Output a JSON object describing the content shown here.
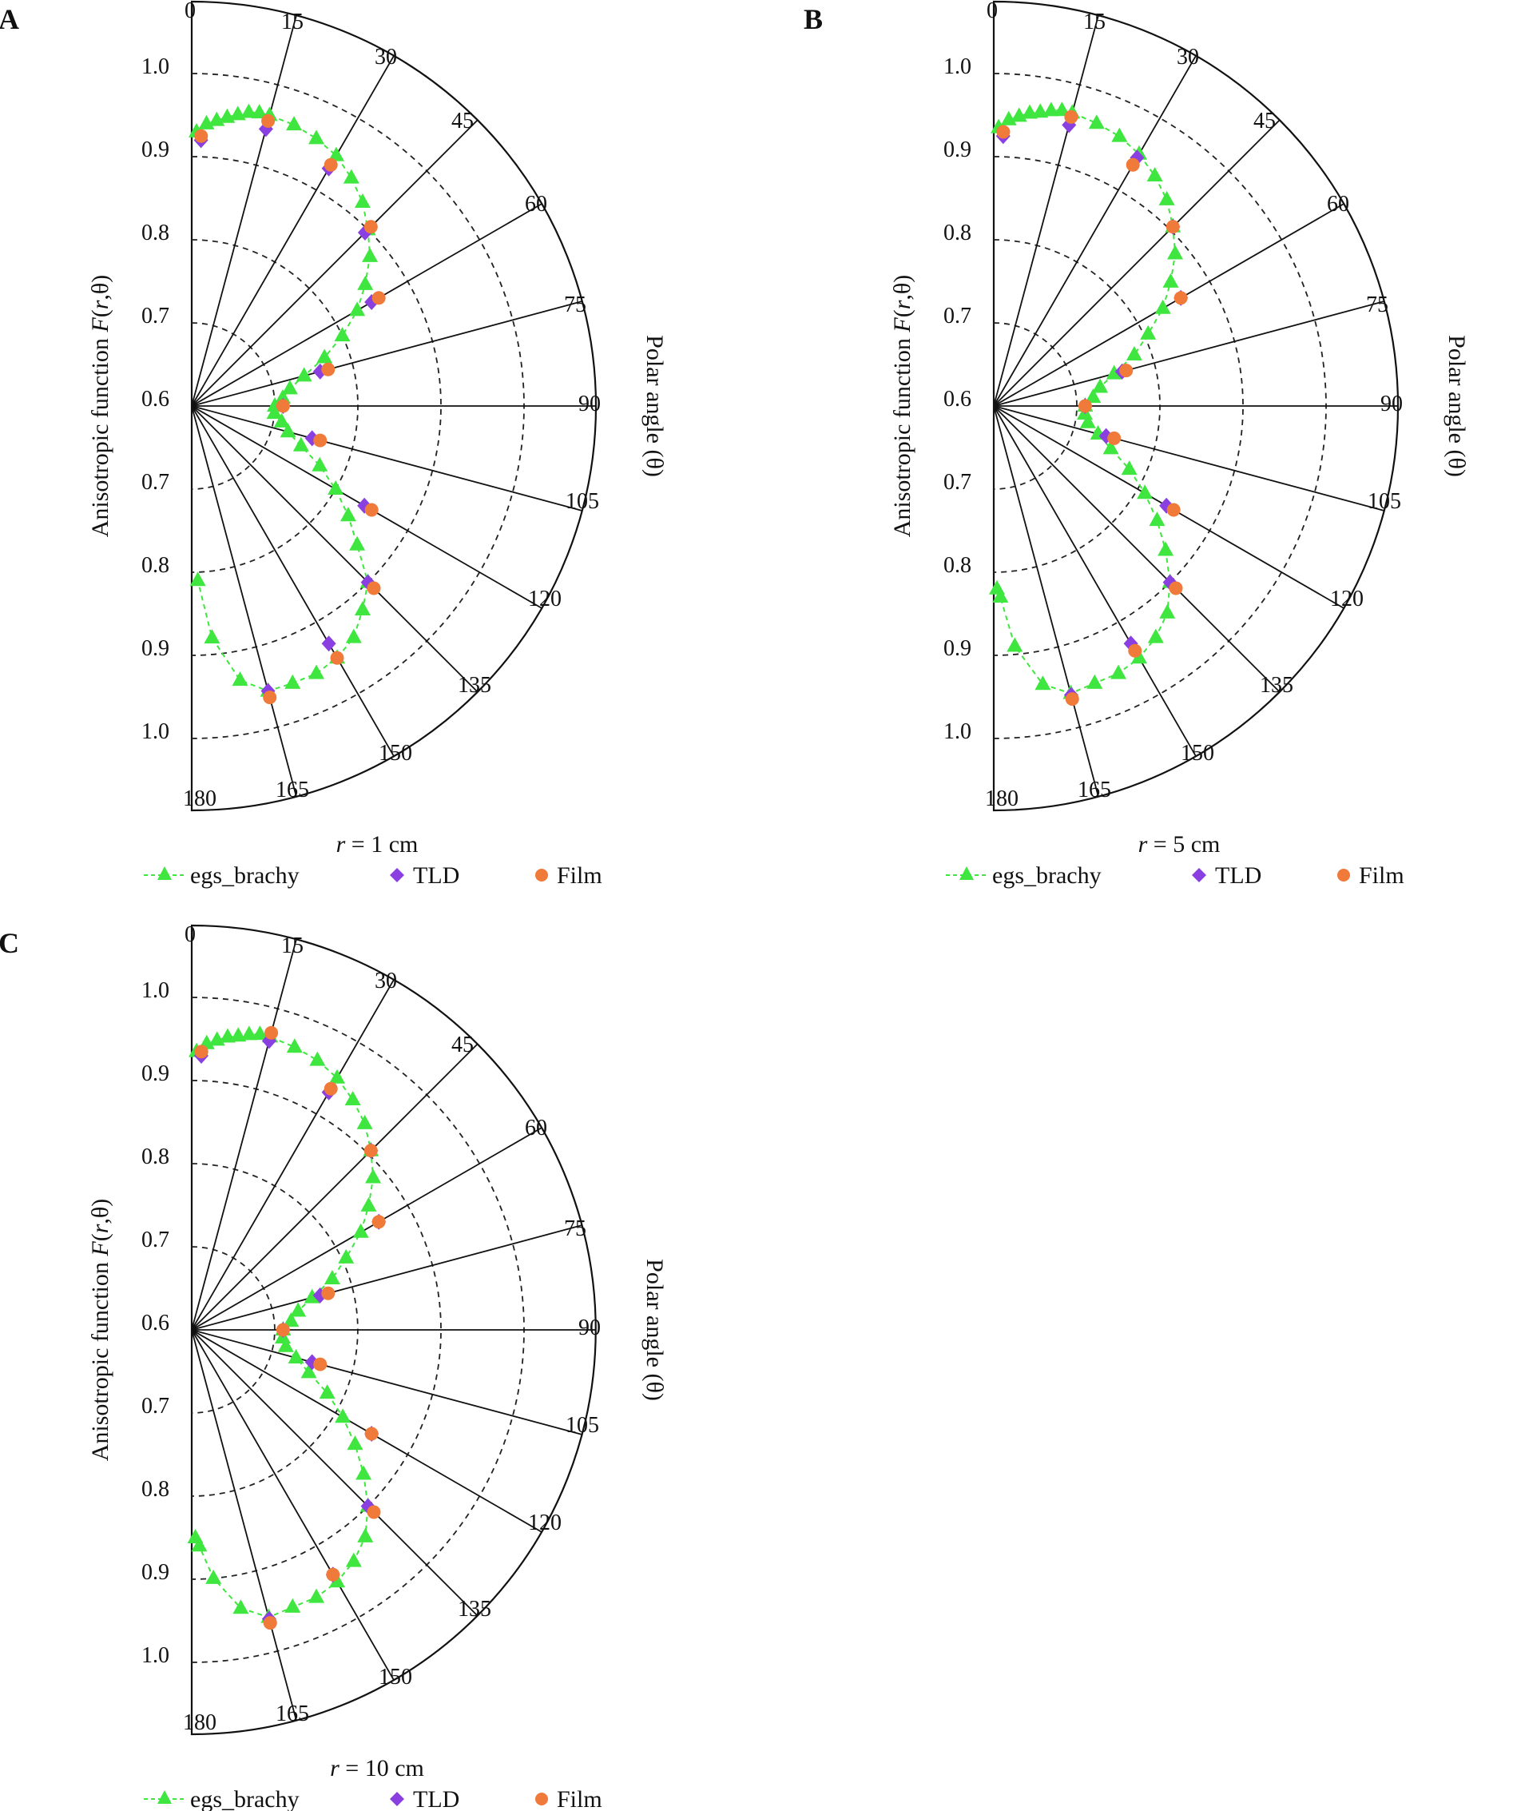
{
  "figure": {
    "colors": {
      "egs_brachy": "#3fe63f",
      "tld": "#8a3fe0",
      "film": "#f07a3a",
      "axis": "#111111",
      "grid_dashed": "#222222"
    },
    "legend_labels": [
      "egs_brachy",
      "TLD",
      "Film"
    ]
  },
  "chart_data": [
    {
      "panel": "A",
      "type": "scatter",
      "subtitle_r": "r",
      "subtitle_rest": " = 1 cm",
      "ylabel_pre": "Anisotropic function ",
      "ylabel_F": "F",
      "ylabel_mid": "(",
      "ylabel_r": "r",
      "ylabel_post": ",θ)",
      "ylabel_right": "Polar angle (θ)",
      "radial_ticks": [
        "1.0",
        "0.9",
        "0.8",
        "0.7",
        "0.6",
        "0.7",
        "0.8",
        "0.9",
        "1.0"
      ],
      "angle_ticks": [
        "0",
        "15",
        "30",
        "45",
        "60",
        "75",
        "90",
        "105",
        "120",
        "135",
        "150",
        "165",
        "180"
      ],
      "rlim": [
        0.6,
        1.05
      ],
      "series": [
        {
          "name": "egs_brachy",
          "marker": "triangle",
          "points": [
            [
              1,
              0.93
            ],
            [
              3,
              0.94
            ],
            [
              5,
              0.945
            ],
            [
              7,
              0.95
            ],
            [
              9,
              0.955
            ],
            [
              11,
              0.96
            ],
            [
              13,
              0.962
            ],
            [
              15,
              0.962
            ],
            [
              20,
              0.96
            ],
            [
              25,
              0.955
            ],
            [
              30,
              0.948
            ],
            [
              35,
              0.935
            ],
            [
              40,
              0.92
            ],
            [
              45,
              0.9
            ],
            [
              50,
              0.88
            ],
            [
              55,
              0.855
            ],
            [
              60,
              0.83
            ],
            [
              65,
              0.8
            ],
            [
              70,
              0.77
            ],
            [
              75,
              0.74
            ],
            [
              80,
              0.72
            ],
            [
              85,
              0.71
            ],
            [
              90,
              0.7
            ],
            [
              95,
              0.7
            ],
            [
              100,
              0.71
            ],
            [
              105,
              0.72
            ],
            [
              110,
              0.74
            ],
            [
              115,
              0.77
            ],
            [
              120,
              0.8
            ],
            [
              125,
              0.83
            ],
            [
              130,
              0.86
            ],
            [
              135,
              0.9
            ],
            [
              140,
              0.92
            ],
            [
              145,
              0.94
            ],
            [
              150,
              0.95
            ],
            [
              155,
              0.955
            ],
            [
              160,
              0.955
            ],
            [
              165,
              0.955
            ],
            [
              170,
              0.935
            ],
            [
              175,
              0.88
            ],
            [
              178,
              0.81
            ]
          ]
        },
        {
          "name": "TLD",
          "marker": "diamond",
          "points": [
            [
              2,
              0.92
            ],
            [
              15,
              0.945
            ],
            [
              30,
              0.93
            ],
            [
              45,
              0.895
            ],
            [
              60,
              0.85
            ],
            [
              75,
              0.76
            ],
            [
              90,
              0.71
            ],
            [
              105,
              0.75
            ],
            [
              120,
              0.84
            ],
            [
              135,
              0.9
            ],
            [
              150,
              0.93
            ],
            [
              165,
              0.955
            ]
          ]
        },
        {
          "name": "Film",
          "marker": "circle",
          "points": [
            [
              2,
              0.925
            ],
            [
              15,
              0.955
            ],
            [
              30,
              0.935
            ],
            [
              45,
              0.905
            ],
            [
              60,
              0.86
            ],
            [
              75,
              0.77
            ],
            [
              90,
              0.71
            ],
            [
              105,
              0.76
            ],
            [
              120,
              0.85
            ],
            [
              135,
              0.91
            ],
            [
              150,
              0.95
            ],
            [
              165,
              0.963
            ]
          ]
        }
      ]
    },
    {
      "panel": "B",
      "type": "scatter",
      "subtitle_r": "r",
      "subtitle_rest": " = 5 cm",
      "ylabel_pre": "Anisotropic function ",
      "ylabel_F": "F",
      "ylabel_mid": "(",
      "ylabel_r": "r",
      "ylabel_post": ",θ)",
      "ylabel_right": "Polar angle (θ)",
      "radial_ticks": [
        "1.0",
        "0.9",
        "0.8",
        "0.7",
        "0.6",
        "0.7",
        "0.8",
        "0.9",
        "1.0"
      ],
      "angle_ticks": [
        "0",
        "15",
        "30",
        "45",
        "60",
        "75",
        "90",
        "105",
        "120",
        "135",
        "150",
        "165",
        "180"
      ],
      "rlim": [
        0.6,
        1.05
      ],
      "series": [
        {
          "name": "egs_brachy",
          "marker": "triangle",
          "points": [
            [
              1,
              0.935
            ],
            [
              3,
              0.945
            ],
            [
              5,
              0.95
            ],
            [
              7,
              0.955
            ],
            [
              9,
              0.958
            ],
            [
              11,
              0.962
            ],
            [
              13,
              0.965
            ],
            [
              15,
              0.965
            ],
            [
              20,
              0.962
            ],
            [
              25,
              0.958
            ],
            [
              30,
              0.95
            ],
            [
              35,
              0.938
            ],
            [
              40,
              0.924
            ],
            [
              45,
              0.905
            ],
            [
              50,
              0.885
            ],
            [
              55,
              0.86
            ],
            [
              60,
              0.835
            ],
            [
              65,
              0.805
            ],
            [
              70,
              0.78
            ],
            [
              75,
              0.75
            ],
            [
              80,
              0.73
            ],
            [
              85,
              0.72
            ],
            [
              90,
              0.71
            ],
            [
              95,
              0.71
            ],
            [
              100,
              0.715
            ],
            [
              105,
              0.73
            ],
            [
              110,
              0.75
            ],
            [
              115,
              0.78
            ],
            [
              120,
              0.81
            ],
            [
              125,
              0.84
            ],
            [
              130,
              0.87
            ],
            [
              135,
              0.9
            ],
            [
              140,
              0.925
            ],
            [
              145,
              0.94
            ],
            [
              150,
              0.95
            ],
            [
              155,
              0.955
            ],
            [
              160,
              0.955
            ],
            [
              165,
              0.958
            ],
            [
              170,
              0.94
            ],
            [
              175,
              0.89
            ],
            [
              178,
              0.83
            ],
            [
              179,
              0.82
            ]
          ]
        },
        {
          "name": "TLD",
          "marker": "diamond",
          "points": [
            [
              2,
              0.925
            ],
            [
              15,
              0.95
            ],
            [
              30,
              0.945
            ],
            [
              45,
              0.905
            ],
            [
              60,
              0.86
            ],
            [
              75,
              0.76
            ],
            [
              90,
              0.71
            ],
            [
              105,
              0.74
            ],
            [
              120,
              0.84
            ],
            [
              135,
              0.9
            ],
            [
              150,
              0.93
            ],
            [
              165,
              0.96
            ]
          ]
        },
        {
          "name": "Film",
          "marker": "circle",
          "points": [
            [
              2,
              0.93
            ],
            [
              15,
              0.96
            ],
            [
              30,
              0.935
            ],
            [
              45,
              0.905
            ],
            [
              60,
              0.86
            ],
            [
              75,
              0.765
            ],
            [
              90,
              0.71
            ],
            [
              105,
              0.75
            ],
            [
              120,
              0.85
            ],
            [
              135,
              0.91
            ],
            [
              150,
              0.94
            ],
            [
              165,
              0.965
            ]
          ]
        }
      ]
    },
    {
      "panel": "C",
      "type": "scatter",
      "subtitle_r": "r",
      "subtitle_rest": " = 10 cm",
      "ylabel_pre": "Anisotropic function ",
      "ylabel_F": "F",
      "ylabel_mid": "(",
      "ylabel_r": "r",
      "ylabel_post": ",θ)",
      "ylabel_right": "Polar angle (θ)",
      "radial_ticks": [
        "1.0",
        "0.9",
        "0.8",
        "0.7",
        "0.6",
        "0.7",
        "0.8",
        "0.9",
        "1.0"
      ],
      "angle_ticks": [
        "0",
        "15",
        "30",
        "45",
        "60",
        "75",
        "90",
        "105",
        "120",
        "135",
        "150",
        "165",
        "180"
      ],
      "rlim": [
        0.6,
        1.05
      ],
      "series": [
        {
          "name": "egs_brachy",
          "marker": "triangle",
          "points": [
            [
              1,
              0.935
            ],
            [
              3,
              0.945
            ],
            [
              5,
              0.95
            ],
            [
              7,
              0.955
            ],
            [
              9,
              0.958
            ],
            [
              11,
              0.962
            ],
            [
              13,
              0.965
            ],
            [
              15,
              0.965
            ],
            [
              20,
              0.962
            ],
            [
              25,
              0.958
            ],
            [
              30,
              0.95
            ],
            [
              35,
              0.938
            ],
            [
              40,
              0.924
            ],
            [
              45,
              0.905
            ],
            [
              50,
              0.885
            ],
            [
              55,
              0.86
            ],
            [
              60,
              0.835
            ],
            [
              65,
              0.805
            ],
            [
              70,
              0.78
            ],
            [
              75,
              0.75
            ],
            [
              80,
              0.73
            ],
            [
              85,
              0.72
            ],
            [
              90,
              0.71
            ],
            [
              95,
              0.71
            ],
            [
              100,
              0.715
            ],
            [
              105,
              0.73
            ],
            [
              110,
              0.75
            ],
            [
              115,
              0.78
            ],
            [
              120,
              0.81
            ],
            [
              125,
              0.84
            ],
            [
              130,
              0.87
            ],
            [
              135,
              0.9
            ],
            [
              140,
              0.925
            ],
            [
              145,
              0.94
            ],
            [
              150,
              0.95
            ],
            [
              155,
              0.955
            ],
            [
              160,
              0.955
            ],
            [
              165,
              0.958
            ],
            [
              170,
              0.94
            ],
            [
              175,
              0.9
            ],
            [
              178,
              0.86
            ],
            [
              179,
              0.85
            ]
          ]
        },
        {
          "name": "TLD",
          "marker": "diamond",
          "points": [
            [
              2,
              0.93
            ],
            [
              15,
              0.96
            ],
            [
              30,
              0.93
            ],
            [
              45,
              0.905
            ],
            [
              60,
              0.86
            ],
            [
              75,
              0.76
            ],
            [
              90,
              0.71
            ],
            [
              105,
              0.75
            ],
            [
              120,
              0.85
            ],
            [
              135,
              0.9
            ],
            [
              150,
              0.94
            ],
            [
              165,
              0.96
            ]
          ]
        },
        {
          "name": "Film",
          "marker": "circle",
          "points": [
            [
              2,
              0.935
            ],
            [
              15,
              0.97
            ],
            [
              30,
              0.935
            ],
            [
              45,
              0.905
            ],
            [
              60,
              0.86
            ],
            [
              75,
              0.77
            ],
            [
              90,
              0.71
            ],
            [
              105,
              0.76
            ],
            [
              120,
              0.85
            ],
            [
              135,
              0.91
            ],
            [
              150,
              0.94
            ],
            [
              165,
              0.965
            ]
          ]
        }
      ]
    }
  ]
}
